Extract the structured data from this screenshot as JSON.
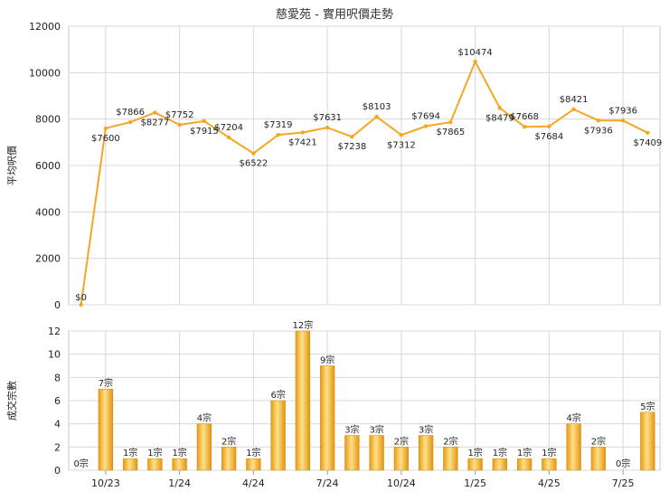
{
  "chart_data": [
    {
      "type": "line",
      "title": "慈愛苑 - 實用呎價走勢",
      "ylabel": "平均呎價",
      "ylim": [
        0,
        12000
      ],
      "yticks": [
        0,
        2000,
        4000,
        6000,
        8000,
        10000,
        12000
      ],
      "grid": true,
      "series": [
        {
          "color": "#f5a623",
          "values": [
            0,
            7600,
            7866,
            8277,
            7752,
            7915,
            7204,
            6522,
            7319,
            7421,
            7631,
            7238,
            8103,
            7312,
            7694,
            7865,
            10474,
            8479,
            7668,
            7684,
            8421,
            7936,
            7936,
            7409
          ],
          "labels": [
            "$0",
            "$7600",
            "$7866",
            "$8277",
            "$7752",
            "$7915",
            "$7204",
            "$6522",
            "$7319",
            "$7421",
            "$7631",
            "$7238",
            "$8103",
            "$7312",
            "$7694",
            "$7865",
            "$10474",
            "$8479",
            "$7668",
            "$7684",
            "$8421",
            "$7936",
            "$7936",
            "$7409"
          ]
        }
      ]
    },
    {
      "type": "bar",
      "ylabel": "成交宗數",
      "ylim": [
        0,
        12
      ],
      "yticks": [
        0,
        2,
        4,
        6,
        8,
        10,
        12
      ],
      "grid": true,
      "xtick_labels": [
        "10/23",
        "1/24",
        "4/24",
        "7/24",
        "10/24",
        "1/25",
        "4/25",
        "7/25"
      ],
      "bar_color": "#f0b030",
      "values": [
        0,
        7,
        1,
        1,
        1,
        4,
        2,
        1,
        6,
        12,
        9,
        3,
        3,
        2,
        3,
        2,
        1,
        1,
        1,
        1,
        4,
        2,
        0,
        5
      ],
      "labels": [
        "0宗",
        "7宗",
        "1宗",
        "1宗",
        "1宗",
        "4宗",
        "2宗",
        "1宗",
        "6宗",
        "12宗",
        "9宗",
        "3宗",
        "3宗",
        "2宗",
        "3宗",
        "2宗",
        "1宗",
        "1宗",
        "1宗",
        "1宗",
        "4宗",
        "2宗",
        "0宗",
        "5宗"
      ]
    }
  ]
}
